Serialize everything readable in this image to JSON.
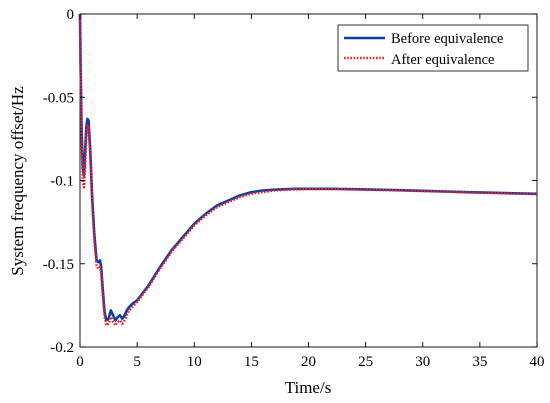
{
  "chart_data": {
    "type": "line",
    "xlabel": "Time/s",
    "ylabel": "System frequency offset/Hz",
    "xlim": [
      0,
      40
    ],
    "ylim": [
      -0.2,
      0
    ],
    "xticks": [
      0,
      5,
      10,
      15,
      20,
      25,
      30,
      35,
      40
    ],
    "xtick_labels": [
      "0",
      "5",
      "10",
      "15",
      "20",
      "25",
      "30",
      "35",
      "40"
    ],
    "yticks": [
      0,
      -0.05,
      -0.1,
      -0.15,
      -0.2
    ],
    "ytick_labels": [
      "0",
      "-0.05",
      "-0.1",
      "-0.15",
      "-0.2"
    ],
    "grid": false,
    "legend_position": "top-right",
    "series": [
      {
        "name": "Before equivalence",
        "color": "#0b3fa8",
        "style": "solid",
        "points": [
          [
            0,
            0
          ],
          [
            0.05,
            -0.03
          ],
          [
            0.15,
            -0.072
          ],
          [
            0.25,
            -0.093
          ],
          [
            0.35,
            -0.097
          ],
          [
            0.45,
            -0.083
          ],
          [
            0.55,
            -0.068
          ],
          [
            0.65,
            -0.063
          ],
          [
            0.75,
            -0.064
          ],
          [
            0.9,
            -0.082
          ],
          [
            1.05,
            -0.108
          ],
          [
            1.25,
            -0.132
          ],
          [
            1.45,
            -0.148
          ],
          [
            1.6,
            -0.149
          ],
          [
            1.75,
            -0.148
          ],
          [
            1.85,
            -0.152
          ],
          [
            2.0,
            -0.166
          ],
          [
            2.15,
            -0.179
          ],
          [
            2.3,
            -0.184
          ],
          [
            2.5,
            -0.183
          ],
          [
            2.7,
            -0.178
          ],
          [
            2.9,
            -0.181
          ],
          [
            3.1,
            -0.184
          ],
          [
            3.3,
            -0.182
          ],
          [
            3.5,
            -0.181
          ],
          [
            3.7,
            -0.183
          ],
          [
            3.9,
            -0.181
          ],
          [
            4.1,
            -0.178
          ],
          [
            4.3,
            -0.176
          ],
          [
            4.6,
            -0.174
          ],
          [
            5,
            -0.172
          ],
          [
            6,
            -0.163
          ],
          [
            7,
            -0.152
          ],
          [
            8,
            -0.142
          ],
          [
            9,
            -0.134
          ],
          [
            10,
            -0.126
          ],
          [
            11,
            -0.12
          ],
          [
            12,
            -0.115
          ],
          [
            13,
            -0.112
          ],
          [
            14,
            -0.109
          ],
          [
            15,
            -0.107
          ],
          [
            16,
            -0.106
          ],
          [
            17,
            -0.1055
          ],
          [
            18,
            -0.1052
          ],
          [
            19,
            -0.105
          ],
          [
            20,
            -0.105
          ],
          [
            22,
            -0.105
          ],
          [
            24,
            -0.1052
          ],
          [
            26,
            -0.1055
          ],
          [
            28,
            -0.1058
          ],
          [
            30,
            -0.1062
          ],
          [
            32,
            -0.1066
          ],
          [
            34,
            -0.107
          ],
          [
            36,
            -0.1073
          ],
          [
            38,
            -0.1077
          ],
          [
            40,
            -0.108
          ]
        ]
      },
      {
        "name": "After equivalence",
        "color": "#ff1a1a",
        "style": "dotted",
        "points": [
          [
            0,
            0
          ],
          [
            0.05,
            -0.035
          ],
          [
            0.15,
            -0.08
          ],
          [
            0.25,
            -0.101
          ],
          [
            0.35,
            -0.105
          ],
          [
            0.45,
            -0.092
          ],
          [
            0.55,
            -0.075
          ],
          [
            0.65,
            -0.067
          ],
          [
            0.75,
            -0.068
          ],
          [
            0.9,
            -0.086
          ],
          [
            1.05,
            -0.112
          ],
          [
            1.25,
            -0.136
          ],
          [
            1.45,
            -0.151
          ],
          [
            1.6,
            -0.153
          ],
          [
            1.75,
            -0.152
          ],
          [
            1.85,
            -0.156
          ],
          [
            2.0,
            -0.17
          ],
          [
            2.15,
            -0.182
          ],
          [
            2.3,
            -0.187
          ],
          [
            2.5,
            -0.186
          ],
          [
            2.7,
            -0.182
          ],
          [
            2.9,
            -0.185
          ],
          [
            3.1,
            -0.187
          ],
          [
            3.3,
            -0.185
          ],
          [
            3.5,
            -0.184
          ],
          [
            3.7,
            -0.186
          ],
          [
            3.9,
            -0.184
          ],
          [
            4.1,
            -0.181
          ],
          [
            4.3,
            -0.178
          ],
          [
            4.6,
            -0.176
          ],
          [
            5,
            -0.173
          ],
          [
            6,
            -0.164
          ],
          [
            7,
            -0.153
          ],
          [
            8,
            -0.143
          ],
          [
            9,
            -0.135
          ],
          [
            10,
            -0.127
          ],
          [
            11,
            -0.121
          ],
          [
            12,
            -0.116
          ],
          [
            13,
            -0.113
          ],
          [
            14,
            -0.11
          ],
          [
            15,
            -0.108
          ],
          [
            16,
            -0.107
          ],
          [
            17,
            -0.106
          ],
          [
            18,
            -0.1056
          ],
          [
            19,
            -0.1053
          ],
          [
            20,
            -0.1052
          ],
          [
            22,
            -0.1052
          ],
          [
            24,
            -0.1054
          ],
          [
            26,
            -0.1057
          ],
          [
            28,
            -0.106
          ],
          [
            30,
            -0.1064
          ],
          [
            32,
            -0.1068
          ],
          [
            34,
            -0.1072
          ],
          [
            36,
            -0.1075
          ],
          [
            38,
            -0.1079
          ],
          [
            40,
            -0.1082
          ]
        ]
      }
    ]
  }
}
